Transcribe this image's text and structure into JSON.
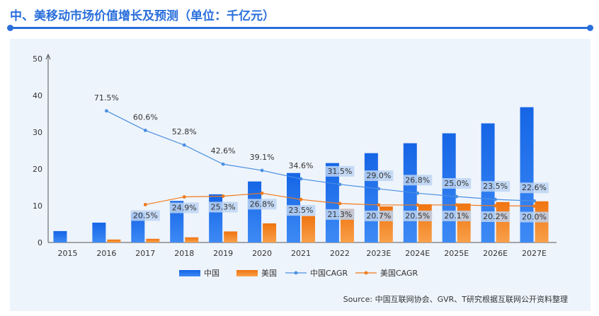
{
  "title": "中、美移动市场价值增长及预测（单位：千亿元）",
  "source": "Source: 中国互联网协会、GVR、T研究根据互联网公开资料整理",
  "colors": {
    "china": "#1e6fe8",
    "usa": "#f5821f",
    "china_cagr": "#4a90e2",
    "usa_cagr": "#f07a1a",
    "label_bg": "#bcd3f2",
    "accent": "#2a6fdb"
  },
  "chart_data": {
    "type": "bar",
    "categories": [
      "2015",
      "2016",
      "2017",
      "2018",
      "2019",
      "2020",
      "2021",
      "2022",
      "2023E",
      "2024E",
      "2025E",
      "2026E",
      "2027E"
    ],
    "yticks": [
      "0",
      "10",
      "20",
      "30",
      "40",
      "50"
    ],
    "ylim": [
      0,
      50
    ],
    "series": [
      {
        "name": "中国",
        "values": [
          3.1,
          5.4,
          8.1,
          11.3,
          13.1,
          16.6,
          18.9,
          21.6,
          24.3,
          27.0,
          29.7,
          32.4,
          36.8
        ]
      },
      {
        "name": "美国",
        "values": [
          0,
          0.8,
          1.0,
          1.4,
          3.0,
          5.2,
          7.2,
          9.1,
          9.8,
          10.4,
          10.6,
          11.0,
          11.2
        ]
      }
    ],
    "cagr": [
      {
        "name": "中国CAGR",
        "start": 1,
        "y": [
          35.8,
          30.5,
          26.5,
          21.3,
          19.6,
          17.3,
          15.8,
          14.6,
          13.4,
          12.5,
          11.7,
          11.3
        ],
        "labels": [
          "71.5%",
          "60.6%",
          "52.8%",
          "42.6%",
          "39.1%",
          "34.6%",
          "31.5%",
          "29.0%",
          "26.8%",
          "25.0%",
          "23.5%",
          "22.6%"
        ]
      },
      {
        "name": "美国CAGR",
        "start": 2,
        "y": [
          10.3,
          12.4,
          12.6,
          13.4,
          11.7,
          10.6,
          10.2,
          10.2,
          10.2,
          10.0,
          9.9
        ],
        "labels": [
          "20.5%",
          "24.9%",
          "25.3%",
          "26.8%",
          "23.5%",
          "21.3%",
          "20.7%",
          "20.5%",
          "20.1%",
          "20.2%",
          "20.0%"
        ]
      }
    ],
    "legend": [
      "中国",
      "美国",
      "中国CAGR",
      "美国CAGR"
    ],
    "legend_position": "bottom"
  }
}
